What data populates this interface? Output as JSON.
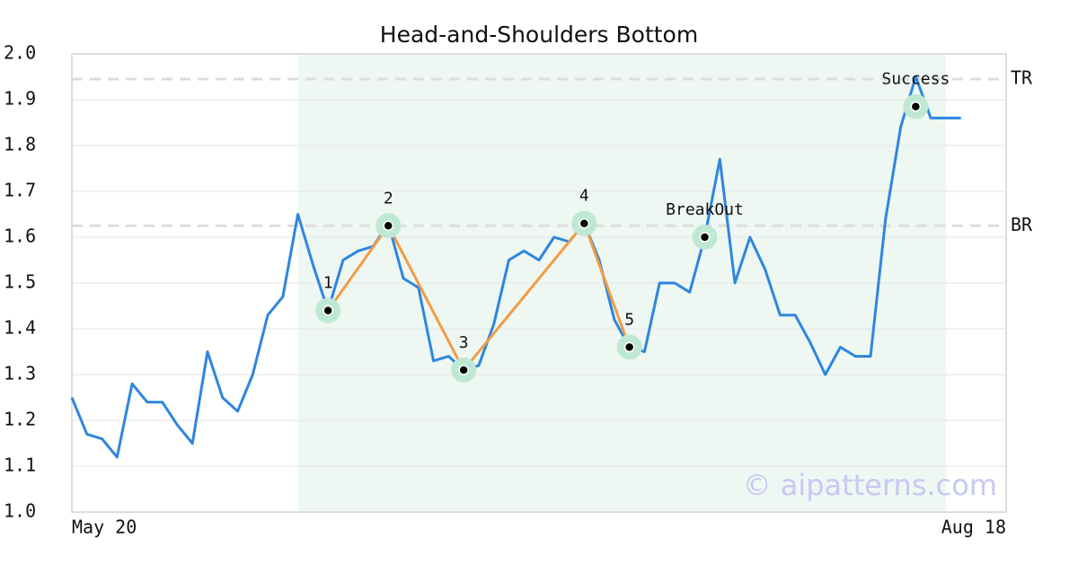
{
  "chart_data": {
    "type": "line",
    "title": "Head-and-Shoulders Bottom",
    "x": [
      0,
      1,
      2,
      3,
      4,
      5,
      6,
      7,
      8,
      9,
      10,
      11,
      12,
      13,
      14,
      15,
      16,
      17,
      18,
      19,
      20,
      21,
      22,
      23,
      24,
      25,
      26,
      27,
      28,
      29,
      30,
      31,
      32,
      33,
      34,
      35,
      36,
      37,
      38,
      39,
      40,
      41,
      42,
      43,
      44,
      45,
      46,
      47,
      48,
      49,
      50,
      51,
      52,
      53,
      54,
      55,
      56,
      57,
      58,
      59
    ],
    "series": [
      {
        "color": "#2e86de",
        "values": [
          1.25,
          1.17,
          1.16,
          1.12,
          1.28,
          1.24,
          1.24,
          1.19,
          1.15,
          1.35,
          1.25,
          1.22,
          1.3,
          1.43,
          1.47,
          1.65,
          1.54,
          1.44,
          1.55,
          1.57,
          1.58,
          1.63,
          1.51,
          1.49,
          1.33,
          1.34,
          1.31,
          1.32,
          1.41,
          1.55,
          1.57,
          1.55,
          1.6,
          1.59,
          1.63,
          1.55,
          1.42,
          1.36,
          1.35,
          1.5,
          1.5,
          1.48,
          1.6,
          1.77,
          1.5,
          1.6,
          1.53,
          1.43,
          1.43,
          1.37,
          1.3,
          1.36,
          1.34,
          1.34,
          1.64,
          1.84,
          1.95,
          1.86,
          1.86,
          1.86
        ]
      }
    ],
    "xlim": [
      0,
      62
    ],
    "xticks": [
      {
        "value": 0,
        "label": "May 20"
      },
      {
        "value": 62,
        "label": "Aug 18"
      }
    ],
    "ylim": [
      1.0,
      2.0
    ],
    "yticks": [
      {
        "value": 1.0,
        "label": "1.0"
      },
      {
        "value": 1.1,
        "label": "1.1"
      },
      {
        "value": 1.2,
        "label": "1.2"
      },
      {
        "value": 1.3,
        "label": "1.3"
      },
      {
        "value": 1.4,
        "label": "1.4"
      },
      {
        "value": 1.5,
        "label": "1.5"
      },
      {
        "value": 1.6,
        "label": "1.6"
      },
      {
        "value": 1.7,
        "label": "1.7"
      },
      {
        "value": 1.8,
        "label": "1.8"
      },
      {
        "value": 1.9,
        "label": "1.9"
      },
      {
        "value": 2.0,
        "label": "2.0"
      }
    ],
    "grid": true,
    "highlight": [
      15,
      58
    ],
    "highlight_color": "#eef7f2",
    "reference_lines": [
      {
        "label": "TR",
        "value": 1.945
      },
      {
        "label": "BR",
        "value": 1.625
      }
    ],
    "pattern_color": "#f39c45",
    "pattern_points": [
      {
        "label": "1",
        "x": 17,
        "y": 1.44
      },
      {
        "label": "2",
        "x": 21,
        "y": 1.625
      },
      {
        "label": "3",
        "x": 26,
        "y": 1.31
      },
      {
        "label": "4",
        "x": 34,
        "y": 1.63
      },
      {
        "label": "5",
        "x": 37,
        "y": 1.36
      }
    ],
    "events": [
      {
        "label": "BreakOut",
        "x": 42,
        "y": 1.6
      },
      {
        "label": "Success",
        "x": 56,
        "y": 1.885
      }
    ],
    "watermark": "© aipatterns.com"
  }
}
